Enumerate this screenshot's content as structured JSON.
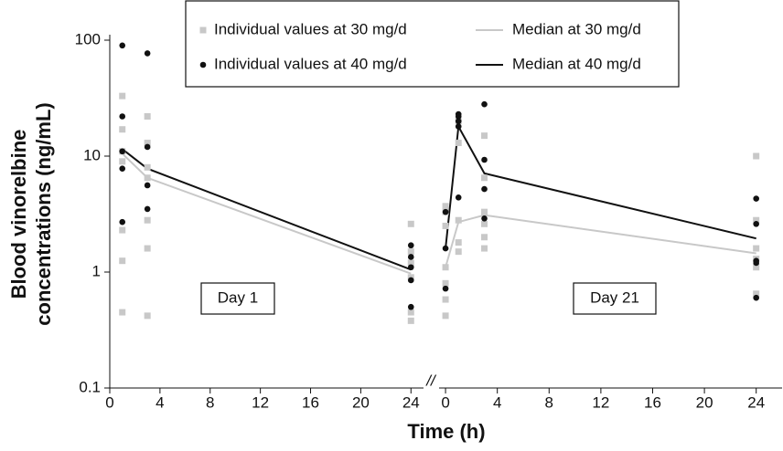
{
  "chart_data": {
    "type": "scatter",
    "log_scale": true,
    "ylabel": [
      "Blood vinorelbine",
      "concentrations (ng/mL)"
    ],
    "xlabel": "Time (h)",
    "ylim": [
      0.1,
      100
    ],
    "yticks": [
      0.1,
      1,
      10,
      100
    ],
    "panels": [
      {
        "label": "Day 1",
        "xlim": [
          0,
          25
        ],
        "xticks": [
          0,
          4,
          8,
          12,
          16,
          20,
          24
        ]
      },
      {
        "label": "Day 21",
        "xlim": [
          -0.5,
          26
        ],
        "xticks": [
          0,
          4,
          8,
          12,
          16,
          20,
          24
        ]
      }
    ],
    "series": [
      {
        "name": "Individual values at 30 mg/d",
        "color": "#c8c8c8",
        "marker": "square",
        "data": [
          {
            "x": [
              1,
              1,
              1,
              1,
              1,
              1,
              1,
              3,
              3,
              3,
              3,
              3,
              3,
              3,
              24,
              24,
              24,
              24,
              24,
              24
            ],
            "values": [
              33,
              17,
              11,
              9,
              2.3,
              1.25,
              0.45,
              22,
              13,
              8,
              6.5,
              2.8,
              1.6,
              0.42,
              2.6,
              1.5,
              1.2,
              0.9,
              0.45,
              0.38
            ]
          },
          {
            "x": [
              0,
              0,
              0,
              0,
              0,
              0,
              0,
              1,
              1,
              1,
              1,
              1,
              3,
              3,
              3,
              3,
              3,
              3,
              24,
              24,
              24,
              24,
              24,
              24
            ],
            "values": [
              3.7,
              3.3,
              2.5,
              1.1,
              0.8,
              0.58,
              0.42,
              20,
              13,
              2.8,
              1.8,
              1.5,
              15,
              6.5,
              3.3,
              2.6,
              2.0,
              1.6,
              10,
              2.8,
              1.6,
              1.3,
              1.1,
              0.65
            ]
          }
        ]
      },
      {
        "name": "Individual values at 40 mg/d",
        "color": "#111111",
        "marker": "circle",
        "data": [
          {
            "x": [
              1,
              1,
              1,
              1,
              1,
              3,
              3,
              3,
              3,
              24,
              24,
              24,
              24,
              24
            ],
            "values": [
              90,
              22,
              11,
              7.8,
              2.7,
              77,
              12,
              5.6,
              3.5,
              1.7,
              1.35,
              1.1,
              0.85,
              0.5
            ]
          },
          {
            "x": [
              0,
              0,
              0,
              1,
              1,
              1,
              1,
              1,
              3,
              3,
              3,
              3,
              24,
              24,
              24,
              24,
              24
            ],
            "values": [
              3.3,
              1.6,
              0.72,
              23,
              22,
              20,
              18,
              4.4,
              28,
              9.3,
              5.2,
              2.9,
              4.3,
              2.6,
              1.25,
              1.2,
              0.6
            ]
          }
        ]
      },
      {
        "name": "Median at 30 mg/d",
        "color": "#c8c8c8",
        "marker": "line",
        "data": [
          {
            "x": [
              1,
              3,
              24
            ],
            "values": [
              10.5,
              6.5,
              0.97
            ]
          },
          {
            "x": [
              0,
              1,
              3,
              24
            ],
            "values": [
              1.1,
              2.7,
              3.1,
              1.45
            ]
          }
        ]
      },
      {
        "name": "Median at 40 mg/d",
        "color": "#111111",
        "marker": "line",
        "data": [
          {
            "x": [
              1,
              3,
              24
            ],
            "values": [
              11.5,
              7.8,
              1.05
            ]
          },
          {
            "x": [
              0,
              1,
              3,
              24
            ],
            "values": [
              1.6,
              18,
              7.1,
              1.95
            ]
          }
        ]
      }
    ]
  }
}
